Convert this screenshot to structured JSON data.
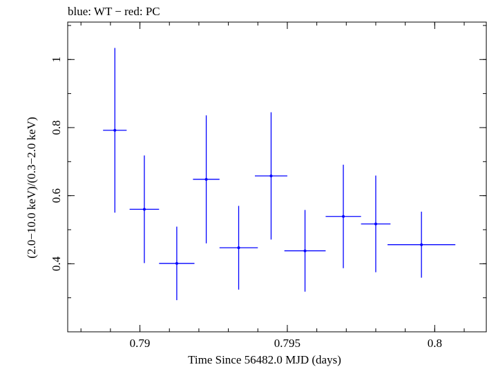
{
  "chart_data": {
    "type": "scatter",
    "title": "blue: WT − red: PC",
    "xlabel": "Time Since 56482.0 MJD (days)",
    "ylabel": "(2.0−10.0 keV)/(0.3−2.0 keV)",
    "xlim": [
      0.78755,
      0.80175
    ],
    "ylim": [
      0.2,
      1.11
    ],
    "x_ticks": [
      0.79,
      0.795,
      0.8
    ],
    "x_tick_labels": [
      "0.79",
      "0.795",
      "0.8"
    ],
    "y_ticks": [
      0.4,
      0.6,
      0.8,
      1.0
    ],
    "y_tick_labels": [
      "0.4",
      "0.6",
      "0.8",
      "1"
    ],
    "x_minor_step": 0.001,
    "y_minor_step": 0.1,
    "series": [
      {
        "name": "WT",
        "color": "#0000ff",
        "points": [
          {
            "x": 0.78915,
            "xerr": 0.0004,
            "y": 0.792,
            "yerr_low": 0.242,
            "yerr_high": 0.242
          },
          {
            "x": 0.79015,
            "xerr": 0.0005,
            "y": 0.56,
            "yerr_low": 0.158,
            "yerr_high": 0.158
          },
          {
            "x": 0.79125,
            "xerr": 0.0006,
            "y": 0.401,
            "yerr_low": 0.108,
            "yerr_high": 0.108
          },
          {
            "x": 0.79225,
            "xerr": 0.00045,
            "y": 0.648,
            "yerr_low": 0.188,
            "yerr_high": 0.188
          },
          {
            "x": 0.79335,
            "xerr": 0.00065,
            "y": 0.447,
            "yerr_low": 0.123,
            "yerr_high": 0.123
          },
          {
            "x": 0.79445,
            "xerr": 0.00055,
            "y": 0.658,
            "yerr_low": 0.187,
            "yerr_high": 0.187
          },
          {
            "x": 0.7956,
            "xerr": 0.0007,
            "y": 0.438,
            "yerr_low": 0.12,
            "yerr_high": 0.12
          },
          {
            "x": 0.7969,
            "xerr": 0.0006,
            "y": 0.539,
            "yerr_low": 0.152,
            "yerr_high": 0.152
          },
          {
            "x": 0.798,
            "xerr": 0.0005,
            "y": 0.517,
            "yerr_low": 0.142,
            "yerr_high": 0.142
          },
          {
            "x": 0.79955,
            "xerr": 0.00115,
            "y": 0.456,
            "yerr_low": 0.097,
            "yerr_high": 0.097
          }
        ]
      }
    ]
  }
}
